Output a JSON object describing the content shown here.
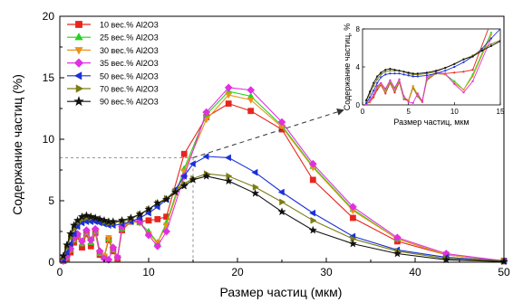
{
  "chart_data": [
    {
      "type": "line",
      "xlabel": "Размер частиц (мкм)",
      "ylabel": "Содержание частиц (%)",
      "xlim": [
        0,
        50
      ],
      "ylim": [
        0,
        20
      ],
      "xticks": [
        "0",
        "10",
        "20",
        "30",
        "40",
        "50"
      ],
      "yticks": [
        "0",
        "5",
        "10",
        "15",
        "20"
      ],
      "legend_position": "top-left",
      "reference_lines": {
        "x": 15,
        "y": 8.5,
        "style": "dashed"
      },
      "series": [
        {
          "name": "10 вес.% Al2O3",
          "color": "#e8241e",
          "marker": "square",
          "x": [
            0.4,
            0.8,
            1.2,
            1.6,
            2,
            2.5,
            3,
            3.5,
            4,
            4.5,
            5,
            5.5,
            6,
            6.5,
            7,
            8,
            9,
            10,
            11,
            12,
            14,
            16.5,
            19,
            21.5,
            25,
            28.5,
            33,
            38,
            43.5,
            50
          ],
          "y": [
            0.1,
            0.3,
            0.8,
            1.6,
            2.1,
            1.2,
            2.3,
            1.3,
            2.4,
            0.6,
            0.4,
            1.8,
            0.9,
            0.3,
            2.6,
            3.3,
            3.3,
            3.4,
            3.5,
            3.7,
            8.8,
            11.8,
            12.9,
            12.3,
            10.8,
            6.7,
            3.6,
            1.7,
            0.6,
            0.1
          ]
        },
        {
          "name": "25 вес.% Al2O3",
          "color": "#22d41d",
          "marker": "triangle-up",
          "x": [
            0.4,
            0.8,
            1.2,
            1.6,
            2,
            2.5,
            3,
            3.5,
            4,
            4.5,
            5,
            5.5,
            6,
            6.5,
            7,
            8,
            9,
            10,
            11,
            12,
            14,
            16.5,
            19,
            21.5,
            25,
            28.5,
            33,
            38,
            43.5,
            50
          ],
          "y": [
            0.1,
            0.4,
            1.0,
            1.8,
            2.2,
            1.5,
            2.4,
            1.6,
            2.5,
            0.7,
            0.5,
            1.9,
            1.0,
            0.4,
            2.7,
            3.3,
            3.2,
            2.5,
            1.6,
            3.2,
            7.6,
            12.0,
            13.9,
            13.5,
            11.1,
            7.8,
            4.3,
            1.9,
            0.6,
            0.1
          ]
        },
        {
          "name": "30 вес.% Al2O3",
          "color": "#e8931a",
          "marker": "triangle-down",
          "x": [
            0.4,
            0.8,
            1.2,
            1.6,
            2,
            2.5,
            3,
            3.5,
            4,
            4.5,
            5,
            5.5,
            6,
            6.5,
            7,
            8,
            9,
            10,
            11,
            12,
            14,
            16.5,
            19,
            21.5,
            25,
            28.5,
            33,
            38,
            43.5,
            50
          ],
          "y": [
            0.1,
            0.4,
            1.0,
            1.9,
            2.2,
            1.6,
            2.5,
            1.7,
            2.6,
            0.8,
            0.5,
            2.0,
            1.1,
            0.4,
            2.8,
            3.3,
            3.2,
            2.3,
            1.6,
            3.0,
            7.4,
            11.6,
            13.6,
            13.2,
            11.0,
            7.7,
            4.2,
            1.9,
            0.6,
            0.1
          ]
        },
        {
          "name": "35 вес.% Al2O3",
          "color": "#e030e0",
          "marker": "diamond",
          "x": [
            0.4,
            0.8,
            1.2,
            1.6,
            2,
            2.5,
            3,
            3.5,
            4,
            4.5,
            5,
            5.5,
            6,
            6.5,
            7,
            8,
            9,
            10,
            11,
            12,
            14,
            16.5,
            19,
            21.5,
            25,
            28.5,
            33,
            38,
            43.5,
            50
          ],
          "y": [
            0.1,
            0.5,
            1.1,
            2.0,
            2.3,
            1.7,
            2.6,
            1.8,
            2.7,
            0.9,
            0.3,
            0.2,
            1.2,
            0.4,
            2.9,
            3.4,
            3.3,
            2.2,
            1.3,
            2.5,
            7.0,
            12.2,
            14.2,
            14.0,
            11.4,
            8.0,
            4.5,
            2.0,
            0.7,
            0.1
          ]
        },
        {
          "name": "50 вес.% Al2O3",
          "color": "#1a31d8",
          "marker": "triangle-left",
          "x": [
            0.4,
            0.8,
            1.2,
            1.6,
            2,
            2.5,
            3,
            3.5,
            4,
            4.5,
            5,
            5.5,
            6,
            7,
            8,
            9,
            10,
            11,
            12,
            13,
            14,
            15,
            16.5,
            19,
            22,
            25,
            28.5,
            33,
            38,
            43.5,
            50
          ],
          "y": [
            0.2,
            0.8,
            1.5,
            2.3,
            2.9,
            3.2,
            3.3,
            3.3,
            3.3,
            3.2,
            3.1,
            3.0,
            3.0,
            3.1,
            3.3,
            3.6,
            4.0,
            4.5,
            5.1,
            5.9,
            7.0,
            8.0,
            8.6,
            8.5,
            7.3,
            5.7,
            4.0,
            2.1,
            1.0,
            0.4,
            0.1
          ]
        },
        {
          "name": "70 вес.% Al2O3",
          "color": "#7b7d12",
          "marker": "triangle-right",
          "x": [
            0.4,
            0.8,
            1.2,
            1.6,
            2,
            2.5,
            3,
            3.5,
            4,
            4.5,
            5,
            5.5,
            6,
            7,
            8,
            9,
            10,
            11,
            12,
            13,
            14,
            15,
            16.5,
            19,
            22,
            25,
            28.5,
            33,
            38,
            43.5,
            50
          ],
          "y": [
            0.4,
            1.2,
            2.0,
            2.7,
            3.2,
            3.5,
            3.6,
            3.6,
            3.6,
            3.5,
            3.3,
            3.2,
            3.2,
            3.3,
            3.5,
            3.9,
            4.3,
            4.8,
            5.2,
            5.8,
            6.4,
            6.8,
            7.2,
            7.0,
            6.1,
            4.9,
            3.4,
            1.9,
            0.9,
            0.3,
            0.1
          ]
        },
        {
          "name": "90 вес.% Al2O3",
          "color": "#111111",
          "marker": "star",
          "x": [
            0.4,
            0.8,
            1.2,
            1.6,
            2,
            2.5,
            3,
            3.5,
            4,
            4.5,
            5,
            5.5,
            6,
            7,
            8,
            9,
            10,
            11,
            12,
            13,
            14,
            15,
            16.5,
            19,
            22,
            25,
            28.5,
            33,
            38,
            43.5,
            50
          ],
          "y": [
            0.5,
            1.4,
            2.3,
            3.0,
            3.4,
            3.7,
            3.8,
            3.7,
            3.6,
            3.5,
            3.4,
            3.3,
            3.3,
            3.4,
            3.6,
            3.9,
            4.3,
            4.8,
            5.1,
            5.7,
            6.2,
            6.7,
            7.0,
            6.6,
            5.6,
            4.1,
            2.6,
            1.5,
            0.7,
            0.2,
            0.05
          ]
        }
      ]
    },
    {
      "type": "line",
      "xlabel": "Размер частиц, мкм",
      "ylabel": "Содержание частиц, %",
      "xlim": [
        0,
        15
      ],
      "ylim": [
        0,
        8
      ],
      "xticks": [
        "0",
        "5",
        "10",
        "15"
      ],
      "yticks": [
        "0",
        "4",
        "8"
      ],
      "series_ref": "same series as main chart, zoomed to 0–15 мкм"
    }
  ]
}
